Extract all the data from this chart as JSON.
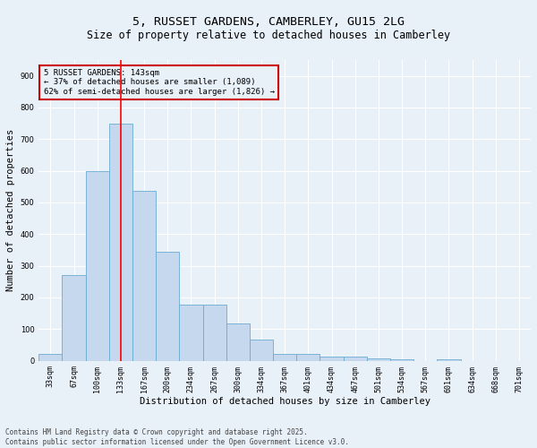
{
  "title_line1": "5, RUSSET GARDENS, CAMBERLEY, GU15 2LG",
  "title_line2": "Size of property relative to detached houses in Camberley",
  "xlabel": "Distribution of detached houses by size in Camberley",
  "ylabel": "Number of detached properties",
  "categories": [
    "33sqm",
    "67sqm",
    "100sqm",
    "133sqm",
    "167sqm",
    "200sqm",
    "234sqm",
    "267sqm",
    "300sqm",
    "334sqm",
    "367sqm",
    "401sqm",
    "434sqm",
    "467sqm",
    "501sqm",
    "534sqm",
    "567sqm",
    "601sqm",
    "634sqm",
    "668sqm",
    "701sqm"
  ],
  "values": [
    22,
    272,
    600,
    748,
    538,
    343,
    178,
    178,
    118,
    68,
    22,
    22,
    12,
    12,
    8,
    5,
    0,
    5,
    0,
    0,
    0
  ],
  "bar_color": "#c5d8ed",
  "bar_edge_color": "#6aabd2",
  "background_color": "#e8f0f8",
  "grid_color": "#ffffff",
  "property_label": "5 RUSSET GARDENS: 143sqm",
  "pct_smaller": "37% of detached houses are smaller (1,089)",
  "pct_larger": "62% of semi-detached houses are larger (1,826)",
  "vline_bin_index": 3,
  "annotation_box_color": "#cc0000",
  "ylim": [
    0,
    950
  ],
  "yticks": [
    0,
    100,
    200,
    300,
    400,
    500,
    600,
    700,
    800,
    900
  ],
  "footer_line1": "Contains HM Land Registry data © Crown copyright and database right 2025.",
  "footer_line2": "Contains public sector information licensed under the Open Government Licence v3.0.",
  "title_fontsize": 9.5,
  "subtitle_fontsize": 8.5,
  "axis_label_fontsize": 7.5,
  "tick_fontsize": 6,
  "annotation_fontsize": 6.5,
  "footer_fontsize": 5.5
}
